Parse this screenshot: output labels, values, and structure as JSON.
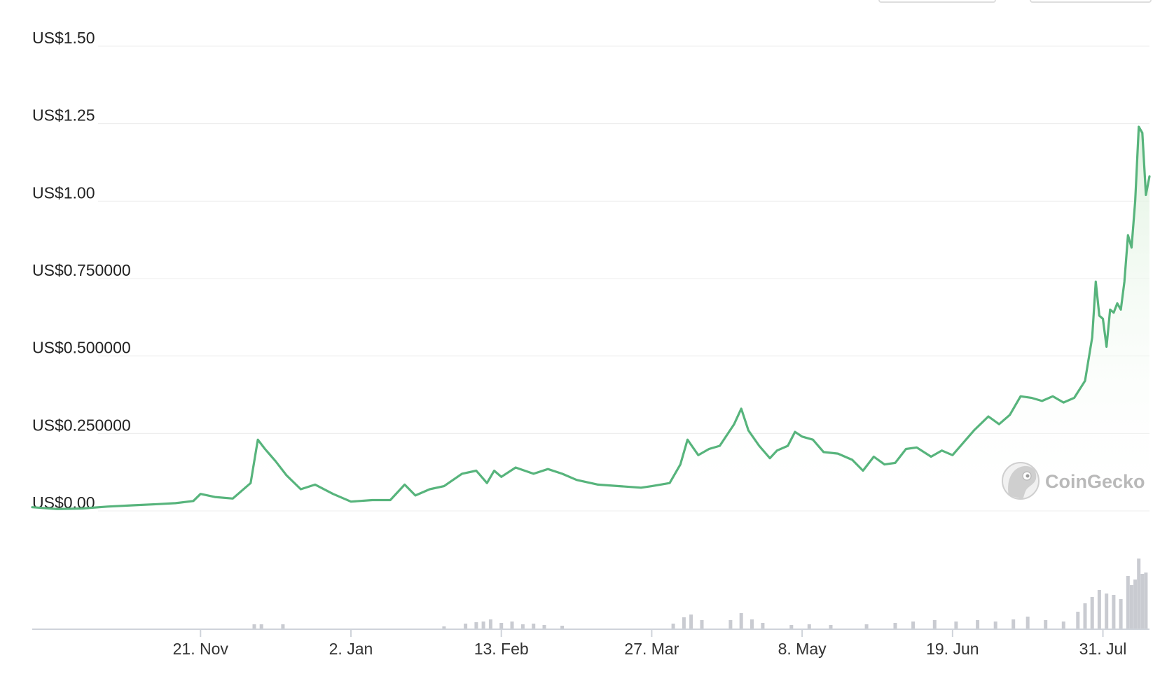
{
  "watermark": {
    "text": "CoinGecko",
    "icon": "gecko-logo-icon"
  },
  "colors": {
    "line": "#57b47c",
    "fill_top": "#dff2df",
    "volume": "#c9cbd1",
    "grid": "#ececec",
    "axis": "#cfd3da"
  },
  "chart_data": {
    "type": "area",
    "title": "",
    "xlabel": "",
    "ylabel": "",
    "y_ticks": [
      {
        "value": 0,
        "label": "US$0.00"
      },
      {
        "value": 0.25,
        "label": "US$0.250000"
      },
      {
        "value": 0.5,
        "label": "US$0.500000"
      },
      {
        "value": 0.75,
        "label": "US$0.750000"
      },
      {
        "value": 1.0,
        "label": "US$1.00"
      },
      {
        "value": 1.25,
        "label": "US$1.25"
      },
      {
        "value": 1.5,
        "label": "US$1.50"
      }
    ],
    "ylim": [
      0,
      1.5
    ],
    "x_range": [
      "2022-10-05",
      "2023-08-10"
    ],
    "x_ticks": [
      {
        "date": "2022-11-21",
        "label": "21. Nov"
      },
      {
        "date": "2023-01-02",
        "label": "2. Jan"
      },
      {
        "date": "2023-02-13",
        "label": "13. Feb"
      },
      {
        "date": "2023-03-27",
        "label": "27. Mar"
      },
      {
        "date": "2023-05-08",
        "label": "8. May"
      },
      {
        "date": "2023-06-19",
        "label": "19. Jun"
      },
      {
        "date": "2023-07-31",
        "label": "31. Jul"
      }
    ],
    "grid": true,
    "series": [
      {
        "values": [
          [
            "2022-10-05",
            0.012
          ],
          [
            "2022-10-12",
            0.006
          ],
          [
            "2022-10-19",
            0.008
          ],
          [
            "2022-10-26",
            0.014
          ],
          [
            "2022-11-02",
            0.018
          ],
          [
            "2022-11-09",
            0.022
          ],
          [
            "2022-11-14",
            0.025
          ],
          [
            "2022-11-19",
            0.032
          ],
          [
            "2022-11-21",
            0.055
          ],
          [
            "2022-11-25",
            0.045
          ],
          [
            "2022-11-30",
            0.04
          ],
          [
            "2022-12-05",
            0.09
          ],
          [
            "2022-12-07",
            0.23
          ],
          [
            "2022-12-09",
            0.2
          ],
          [
            "2022-12-12",
            0.16
          ],
          [
            "2022-12-15",
            0.115
          ],
          [
            "2022-12-19",
            0.07
          ],
          [
            "2022-12-23",
            0.085
          ],
          [
            "2022-12-28",
            0.055
          ],
          [
            "2023-01-02",
            0.03
          ],
          [
            "2023-01-08",
            0.035
          ],
          [
            "2023-01-13",
            0.035
          ],
          [
            "2023-01-17",
            0.085
          ],
          [
            "2023-01-20",
            0.05
          ],
          [
            "2023-01-24",
            0.07
          ],
          [
            "2023-01-28",
            0.08
          ],
          [
            "2023-02-02",
            0.12
          ],
          [
            "2023-02-06",
            0.13
          ],
          [
            "2023-02-09",
            0.09
          ],
          [
            "2023-02-11",
            0.13
          ],
          [
            "2023-02-13",
            0.11
          ],
          [
            "2023-02-17",
            0.14
          ],
          [
            "2023-02-22",
            0.12
          ],
          [
            "2023-02-26",
            0.135
          ],
          [
            "2023-03-02",
            0.12
          ],
          [
            "2023-03-06",
            0.1
          ],
          [
            "2023-03-12",
            0.085
          ],
          [
            "2023-03-18",
            0.08
          ],
          [
            "2023-03-24",
            0.075
          ],
          [
            "2023-03-27",
            0.08
          ],
          [
            "2023-04-01",
            0.09
          ],
          [
            "2023-04-04",
            0.15
          ],
          [
            "2023-04-06",
            0.23
          ],
          [
            "2023-04-09",
            0.18
          ],
          [
            "2023-04-12",
            0.2
          ],
          [
            "2023-04-15",
            0.21
          ],
          [
            "2023-04-19",
            0.28
          ],
          [
            "2023-04-21",
            0.33
          ],
          [
            "2023-04-23",
            0.26
          ],
          [
            "2023-04-26",
            0.21
          ],
          [
            "2023-04-29",
            0.17
          ],
          [
            "2023-05-01",
            0.195
          ],
          [
            "2023-05-04",
            0.21
          ],
          [
            "2023-05-06",
            0.255
          ],
          [
            "2023-05-08",
            0.24
          ],
          [
            "2023-05-11",
            0.23
          ],
          [
            "2023-05-14",
            0.19
          ],
          [
            "2023-05-18",
            0.185
          ],
          [
            "2023-05-22",
            0.165
          ],
          [
            "2023-05-25",
            0.13
          ],
          [
            "2023-05-28",
            0.175
          ],
          [
            "2023-05-31",
            0.15
          ],
          [
            "2023-06-03",
            0.155
          ],
          [
            "2023-06-06",
            0.2
          ],
          [
            "2023-06-09",
            0.205
          ],
          [
            "2023-06-13",
            0.175
          ],
          [
            "2023-06-16",
            0.195
          ],
          [
            "2023-06-19",
            0.18
          ],
          [
            "2023-06-22",
            0.22
          ],
          [
            "2023-06-25",
            0.26
          ],
          [
            "2023-06-29",
            0.305
          ],
          [
            "2023-07-02",
            0.28
          ],
          [
            "2023-07-05",
            0.31
          ],
          [
            "2023-07-08",
            0.37
          ],
          [
            "2023-07-11",
            0.365
          ],
          [
            "2023-07-14",
            0.355
          ],
          [
            "2023-07-17",
            0.37
          ],
          [
            "2023-07-20",
            0.35
          ],
          [
            "2023-07-23",
            0.365
          ],
          [
            "2023-07-26",
            0.42
          ],
          [
            "2023-07-28",
            0.56
          ],
          [
            "2023-07-29",
            0.74
          ],
          [
            "2023-07-30",
            0.63
          ],
          [
            "2023-07-31",
            0.62
          ],
          [
            "2023-08-01",
            0.53
          ],
          [
            "2023-08-02",
            0.65
          ],
          [
            "2023-08-03",
            0.64
          ],
          [
            "2023-08-04",
            0.67
          ],
          [
            "2023-08-05",
            0.65
          ],
          [
            "2023-08-06",
            0.74
          ],
          [
            "2023-08-07",
            0.89
          ],
          [
            "2023-08-08",
            0.85
          ],
          [
            "2023-08-09",
            1.0
          ],
          [
            "2023-08-10",
            1.24
          ],
          [
            "2023-08-11",
            1.22
          ],
          [
            "2023-08-12",
            1.02
          ],
          [
            "2023-08-13",
            1.08
          ]
        ]
      }
    ],
    "volume_series": {
      "values": [
        [
          "2022-12-06",
          0.06
        ],
        [
          "2022-12-08",
          0.06
        ],
        [
          "2022-12-14",
          0.06
        ],
        [
          "2023-01-28",
          0.03
        ],
        [
          "2023-02-03",
          0.07
        ],
        [
          "2023-02-06",
          0.09
        ],
        [
          "2023-02-08",
          0.1
        ],
        [
          "2023-02-10",
          0.13
        ],
        [
          "2023-02-13",
          0.08
        ],
        [
          "2023-02-16",
          0.1
        ],
        [
          "2023-02-19",
          0.06
        ],
        [
          "2023-02-22",
          0.07
        ],
        [
          "2023-02-25",
          0.05
        ],
        [
          "2023-03-02",
          0.04
        ],
        [
          "2023-04-02",
          0.07
        ],
        [
          "2023-04-05",
          0.16
        ],
        [
          "2023-04-07",
          0.2
        ],
        [
          "2023-04-10",
          0.12
        ],
        [
          "2023-04-18",
          0.12
        ],
        [
          "2023-04-21",
          0.22
        ],
        [
          "2023-04-24",
          0.13
        ],
        [
          "2023-04-27",
          0.08
        ],
        [
          "2023-05-05",
          0.05
        ],
        [
          "2023-05-10",
          0.06
        ],
        [
          "2023-05-16",
          0.05
        ],
        [
          "2023-05-26",
          0.06
        ],
        [
          "2023-06-03",
          0.08
        ],
        [
          "2023-06-08",
          0.1
        ],
        [
          "2023-06-14",
          0.12
        ],
        [
          "2023-06-20",
          0.1
        ],
        [
          "2023-06-26",
          0.12
        ],
        [
          "2023-07-01",
          0.1
        ],
        [
          "2023-07-06",
          0.13
        ],
        [
          "2023-07-10",
          0.17
        ],
        [
          "2023-07-15",
          0.12
        ],
        [
          "2023-07-20",
          0.1
        ],
        [
          "2023-07-24",
          0.24
        ],
        [
          "2023-07-26",
          0.36
        ],
        [
          "2023-07-28",
          0.45
        ],
        [
          "2023-07-30",
          0.55
        ],
        [
          "2023-08-01",
          0.5
        ],
        [
          "2023-08-03",
          0.48
        ],
        [
          "2023-08-05",
          0.42
        ],
        [
          "2023-08-07",
          0.75
        ],
        [
          "2023-08-08",
          0.62
        ],
        [
          "2023-08-09",
          0.7
        ],
        [
          "2023-08-10",
          1.0
        ],
        [
          "2023-08-11",
          0.78
        ],
        [
          "2023-08-12",
          0.8
        ]
      ]
    }
  }
}
